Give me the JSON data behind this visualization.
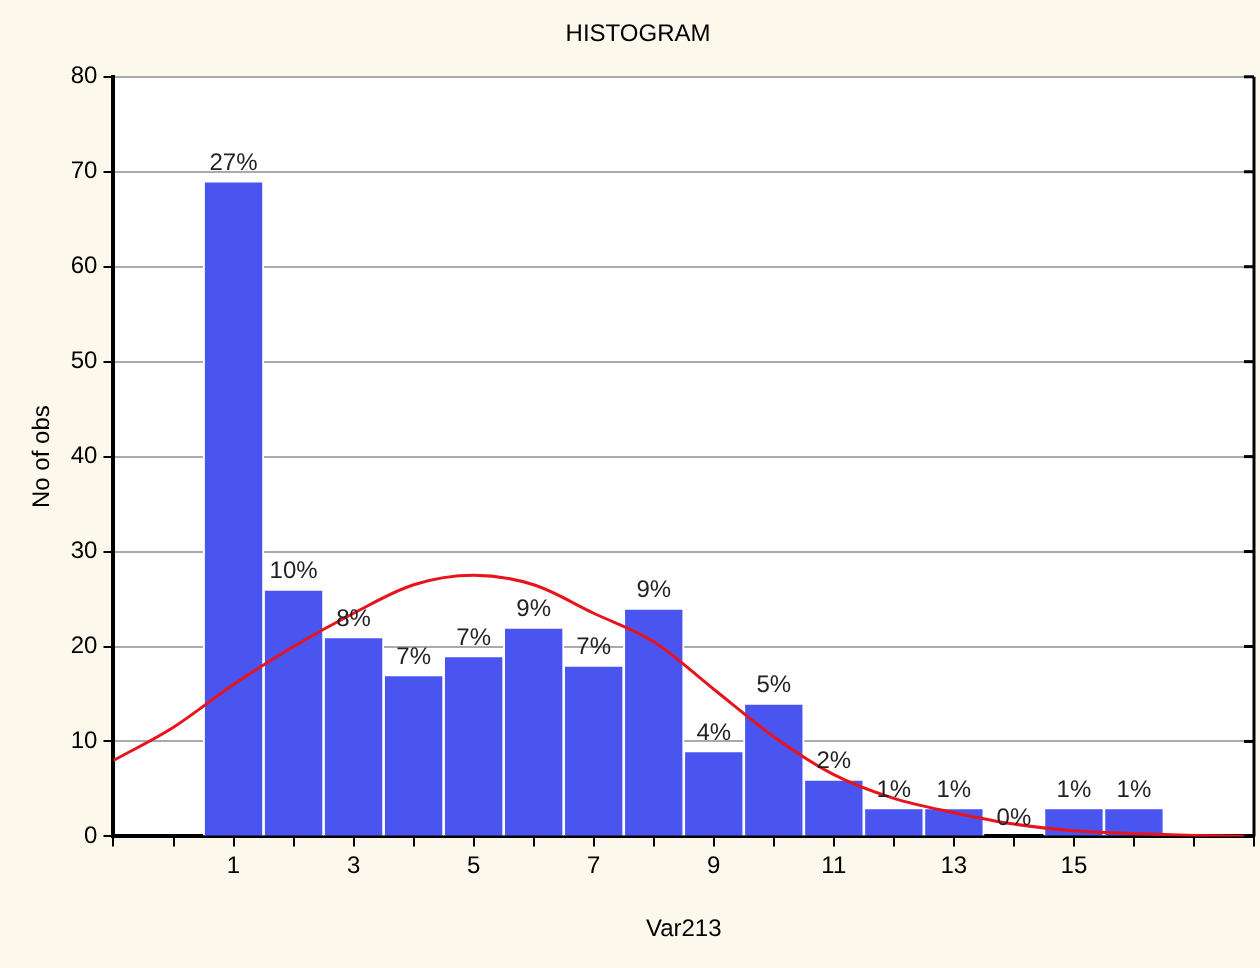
{
  "chart_data": {
    "type": "histogram",
    "title": "HISTOGRAM",
    "xlabel": "Var213",
    "ylabel": "No of obs",
    "bins": [
      0.5,
      1.5,
      2.5,
      3.5,
      4.5,
      5.5,
      6.5,
      7.5,
      8.5,
      9.5,
      10.5,
      11.5,
      12.5,
      13.5,
      14.5,
      15.5,
      16.5
    ],
    "values": [
      69,
      26,
      21,
      17,
      19,
      22,
      18,
      24,
      9,
      14,
      6,
      3,
      3,
      0,
      3,
      3
    ],
    "annotations": [
      {
        "text": "27%",
        "x": 1,
        "y": 69
      },
      {
        "text": "10%",
        "x": 2,
        "y": 26
      },
      {
        "text": "8%",
        "x": 3,
        "y": 21
      },
      {
        "text": "7%",
        "x": 4,
        "y": 17
      },
      {
        "text": "7%",
        "x": 5,
        "y": 19
      },
      {
        "text": "9%",
        "x": 6,
        "y": 22
      },
      {
        "text": "7%",
        "x": 7,
        "y": 18
      },
      {
        "text": "9%",
        "x": 8,
        "y": 24
      },
      {
        "text": "4%",
        "x": 9,
        "y": 9
      },
      {
        "text": "5%",
        "x": 10,
        "y": 14
      },
      {
        "text": "2%",
        "x": 11,
        "y": 6
      },
      {
        "text": "1%",
        "x": 12,
        "y": 3
      },
      {
        "text": "1%",
        "x": 13,
        "y": 3
      },
      {
        "text": "0%",
        "x": 14,
        "y": 0
      },
      {
        "text": "1%",
        "x": 15,
        "y": 3
      },
      {
        "text": "1%",
        "x": 16,
        "y": 3
      }
    ],
    "color": "#4a55f0",
    "series": [
      {
        "type": "line",
        "color": "#e8141c",
        "x": [
          -1,
          0,
          1,
          2,
          3,
          4,
          5,
          6,
          7,
          8,
          9,
          10,
          11,
          12,
          13,
          14,
          15,
          16,
          17,
          18
        ],
        "values": [
          8,
          11.5,
          16,
          20,
          23.5,
          26.5,
          27.5,
          26.5,
          23.5,
          20.5,
          15.5,
          10.5,
          6.5,
          4,
          2.5,
          1.3,
          0.6,
          0.3,
          0.1,
          0
        ]
      }
    ],
    "marker": "none",
    "xlim": [
      -1,
      18
    ],
    "xticks": [
      {
        "value": -1,
        "label": null
      },
      {
        "value": 0,
        "label": null
      },
      1,
      {
        "value": 2,
        "label": null
      },
      3,
      {
        "value": 4,
        "label": null
      },
      5,
      {
        "value": 6,
        "label": null
      },
      7,
      {
        "value": 8,
        "label": null
      },
      9,
      {
        "value": 10,
        "label": null
      },
      11,
      {
        "value": 12,
        "label": null
      },
      13,
      {
        "value": 14,
        "label": null
      },
      15,
      {
        "value": 16,
        "label": null
      },
      {
        "value": 17,
        "label": null
      },
      {
        "value": 18,
        "label": null
      }
    ],
    "ylim": [
      0,
      80
    ],
    "yticks": [
      0,
      10,
      20,
      30,
      40,
      50,
      60,
      70,
      80
    ],
    "grid": "y",
    "legend": false
  }
}
